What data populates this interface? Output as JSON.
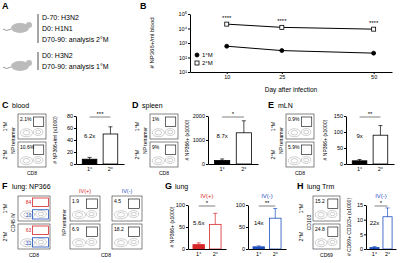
{
  "headers": [
    {
      "letter": "A"
    },
    {
      "letter": "B"
    },
    {
      "letter": "C",
      "title": "blood"
    },
    {
      "letter": "D",
      "title": "spleen"
    },
    {
      "letter": "E",
      "title": "mLN"
    },
    {
      "letter": "F",
      "title": "lung: NP366"
    },
    {
      "letter": "G",
      "title": "lung"
    },
    {
      "letter": "H",
      "title": "lung Trm"
    }
  ],
  "schematic": {
    "groups": [
      [
        "D-70: H3N2",
        "D0: H1N1",
        "D70-90: analysis 2°M"
      ],
      [
        "D0: H3N2",
        "D70-90: analysis 1°M"
      ]
    ]
  },
  "chart_data": [
    {
      "type": "line",
      "x_label": "Day after infection",
      "y_label": "# NP366+/ml blood",
      "x": [
        10,
        25,
        50
      ],
      "xlim": [
        0,
        55
      ],
      "xticks": [
        10,
        25,
        50
      ],
      "log": "y",
      "ylim": [
        10,
        100000
      ],
      "yticks": [
        {
          "value": 10,
          "label": "10¹"
        },
        {
          "value": 100,
          "label": "10²"
        },
        {
          "value": 1000,
          "label": "10³"
        },
        {
          "value": 10000,
          "label": "10⁴"
        },
        {
          "value": 100000,
          "label": "10⁵"
        }
      ],
      "legend": "lower left",
      "series": [
        {
          "name": "1°M",
          "color": "#000000",
          "marker": "circle",
          "values": [
            600,
            300,
            200
          ]
        },
        {
          "name": "2°M",
          "color": "#000000",
          "marker": "square-open",
          "values": [
            20000,
            12000,
            9000
          ]
        }
      ],
      "annotations": [
        "****",
        "****",
        "****"
      ]
    },
    {
      "type": "bar",
      "y_label": "# NP366+/ml (x1000)",
      "categories": [
        "1°",
        "2°"
      ],
      "values": [
        8,
        50
      ],
      "errors": [
        3,
        12
      ],
      "colors": [
        "#000000",
        "#ffffff"
      ],
      "ylim": [
        0,
        80
      ],
      "yticks": [
        0,
        20,
        40,
        60,
        80
      ],
      "fold_change": "6.2x",
      "significance": "***"
    },
    {
      "type": "bar",
      "y_label": "# NP366+ (x1000)",
      "categories": [
        "1°",
        "2°"
      ],
      "values": [
        150,
        1300
      ],
      "errors": [
        60,
        500
      ],
      "colors": [
        "#000000",
        "#ffffff"
      ],
      "ylim": [
        0,
        2000
      ],
      "yticks": [
        0,
        1000,
        2000
      ],
      "fold_change": "8.7x",
      "significance": "*"
    },
    {
      "type": "bar",
      "y_label": "# NP366+ (x1000)",
      "categories": [
        "1°",
        "2°"
      ],
      "values": [
        10,
        90
      ],
      "errors": [
        4,
        30
      ],
      "colors": [
        "#000000",
        "#ffffff"
      ],
      "ylim": [
        0,
        150
      ],
      "yticks": [
        0,
        50,
        100,
        150
      ],
      "fold_change": "9x",
      "significance": "**"
    },
    {
      "type": "bar",
      "subtitle": "IV(+)",
      "y_label": "# NP366+ (x1000)",
      "categories": [
        "1°",
        "2°"
      ],
      "values": [
        10,
        56
      ],
      "errors": [
        4,
        25
      ],
      "colors": [
        "#d62728",
        "#ffffff"
      ],
      "ylim": [
        0,
        100
      ],
      "yticks": [
        0,
        50,
        100
      ],
      "fold_change": "5.6x",
      "significance": "*"
    },
    {
      "type": "bar",
      "subtitle": "IV(-)",
      "categories": [
        "1°",
        "2°"
      ],
      "values": [
        5,
        70
      ],
      "errors": [
        2,
        22
      ],
      "colors": [
        "#1f4fbf",
        "#ffffff"
      ],
      "ylim": [
        0,
        100
      ],
      "yticks": [
        0,
        50,
        100
      ],
      "fold_change": "14x",
      "significance": "**"
    },
    {
      "type": "bar",
      "subtitle": "IV(-)",
      "y_label": "# CD69+ CD103+ (x1000)",
      "categories": [
        "1°",
        "2°"
      ],
      "values": [
        0.5,
        11
      ],
      "errors": [
        0.3,
        3
      ],
      "colors": [
        "#1f4fbf",
        "#ffffff"
      ],
      "ylim": [
        0,
        15
      ],
      "yticks": [
        0,
        5,
        10,
        15
      ],
      "fold_change": "22x",
      "significance": "*"
    }
  ],
  "flow_panels": [
    {
      "rows": [
        "1°M",
        "2°M"
      ],
      "y_label": "NP tetramer",
      "x_label": "CD8",
      "gates": [
        "2.1%",
        "10.6%"
      ]
    },
    {
      "rows": [
        "1°M",
        "2°M"
      ],
      "y_label": "NP tetramer",
      "x_label": "CD8",
      "gates": [
        "1%",
        "9%"
      ]
    },
    {
      "rows": [
        "1°M",
        "2°M"
      ],
      "y_label": "NP tetramer",
      "x_label": "CD8",
      "gates": [
        "0.9%",
        "5.9%"
      ]
    },
    {
      "rows": [
        "1°M",
        "2°M"
      ],
      "y_label": "CD45 IV",
      "x_label": "CD8",
      "gates": [
        [
          "84",
          "16"
        ],
        [
          "63",
          "31"
        ]
      ],
      "sub_columns": [
        "IV(+)",
        "IV(-)"
      ],
      "sub_y_label": "NP tetramer",
      "sub_x_label": "CD8",
      "sub_gates": [
        [
          "1.9",
          "4.5"
        ],
        [
          "6.9",
          "18.2"
        ]
      ]
    },
    {
      "rows": [
        "1°M",
        "2°M"
      ],
      "y_label": "CD103",
      "x_label": "CD69",
      "gates": [
        "15.2",
        "24.8"
      ]
    }
  ]
}
